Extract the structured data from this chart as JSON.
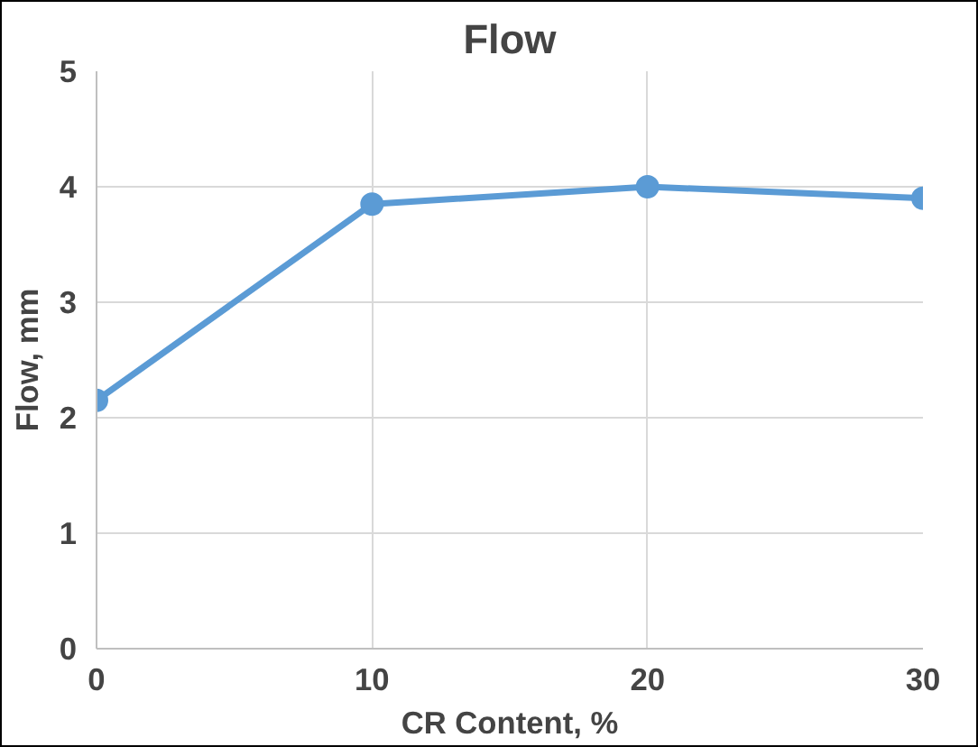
{
  "chart_data": {
    "type": "line",
    "title": "Flow",
    "xlabel": "CR Content, %",
    "ylabel": "Flow, mm",
    "x": [
      0,
      10,
      20,
      30
    ],
    "series": [
      {
        "color": "#5b9bd5",
        "values": [
          2.15,
          3.85,
          4.0,
          3.9
        ]
      }
    ],
    "xlim": [
      0,
      30
    ],
    "xticks": [
      0,
      10,
      20,
      30
    ],
    "ylim": [
      0,
      5
    ],
    "yticks": [
      0,
      1,
      2,
      3,
      4,
      5
    ],
    "grid": true,
    "marker": "circle",
    "line_style": "solid"
  }
}
